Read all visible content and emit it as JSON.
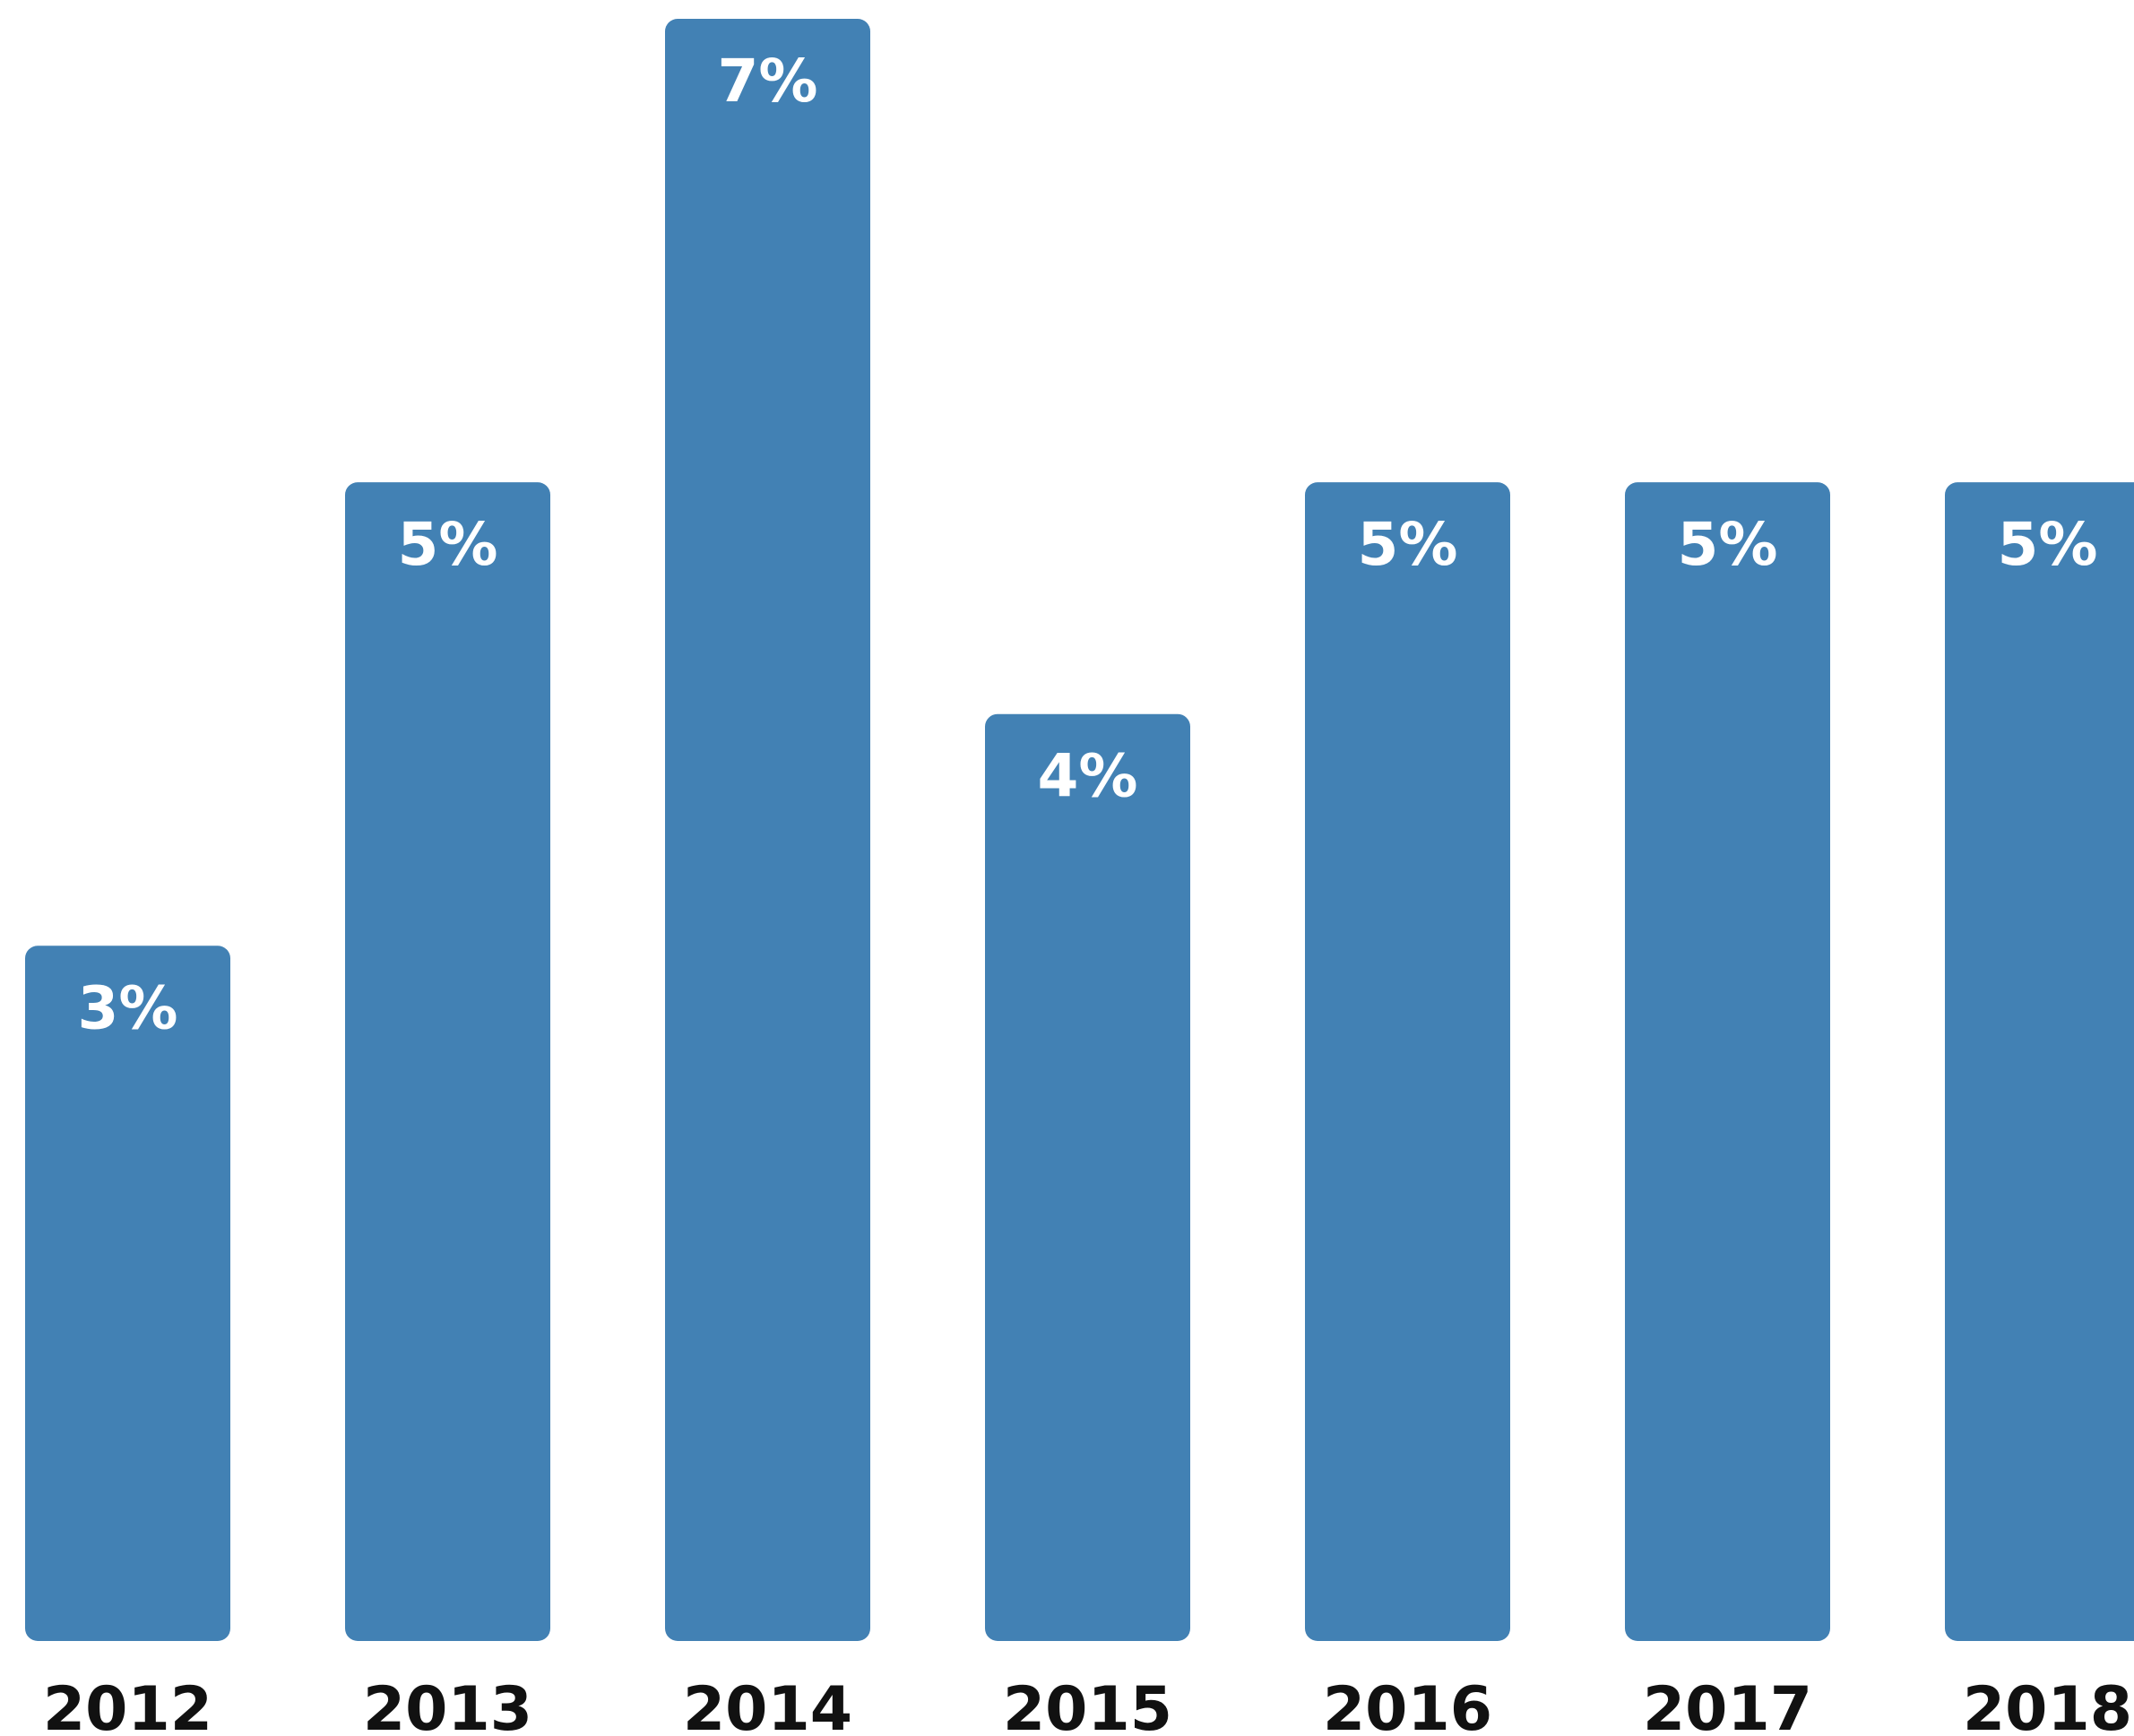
{
  "chart_data": {
    "type": "bar",
    "categories": [
      "2012",
      "2013",
      "2014",
      "2015",
      "2016",
      "2017",
      "2018"
    ],
    "values": [
      3,
      5,
      7,
      4,
      5,
      5,
      5
    ],
    "labels": [
      "3%",
      "5%",
      "7%",
      "4%",
      "5%",
      "5%",
      "5%"
    ],
    "title": "",
    "xlabel": "",
    "ylabel": "",
    "grid": false,
    "legend": "none",
    "colors": {
      "bar": "#4281B4",
      "value_label": "#ffffff",
      "tick_label": "#111111"
    }
  }
}
